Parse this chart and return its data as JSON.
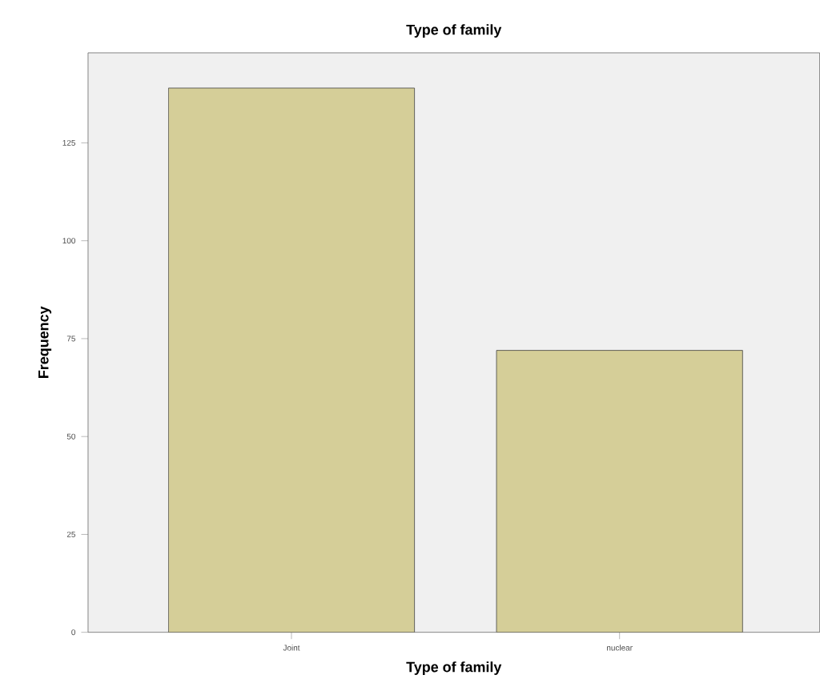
{
  "chart_data": {
    "type": "bar",
    "title": "Type of family",
    "xlabel": "Type of family",
    "ylabel": "Frequency",
    "categories": [
      "Joint",
      "nuclear"
    ],
    "values": [
      139,
      72
    ],
    "color": "#d5ce98",
    "ylim": [
      0,
      148
    ],
    "yticks": [
      0,
      25,
      50,
      75,
      100,
      125
    ],
    "grid": false
  }
}
